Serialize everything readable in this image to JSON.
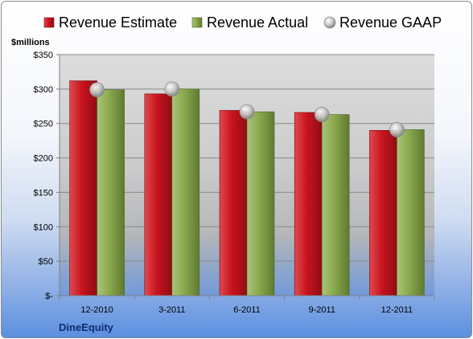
{
  "chart_data": {
    "type": "bar",
    "title": "",
    "ylabel": "$millions",
    "xlabel": "",
    "company": "DineEquity",
    "categories": [
      "12-2010",
      "3-2011",
      "6-2011",
      "9-2011",
      "12-2011"
    ],
    "ylim": [
      0,
      350
    ],
    "yticks": [
      0,
      50,
      100,
      150,
      200,
      250,
      300,
      350
    ],
    "ytick_labels": [
      "$-",
      "$50",
      "$100",
      "$150",
      "$200",
      "$250",
      "$300",
      "$350"
    ],
    "grid": true,
    "legend_position": "top",
    "series": [
      {
        "name": "Revenue Estimate",
        "kind": "bar",
        "color": "#c8141e",
        "values": [
          312,
          293,
          269,
          266,
          240
        ]
      },
      {
        "name": "Revenue Actual",
        "kind": "bar",
        "color": "#8aa84c",
        "values": [
          299,
          300,
          267,
          263,
          241
        ]
      },
      {
        "name": "Revenue GAAP",
        "kind": "marker",
        "color": "#b8b8b8",
        "values": [
          299,
          300,
          267,
          263,
          241
        ]
      }
    ]
  }
}
